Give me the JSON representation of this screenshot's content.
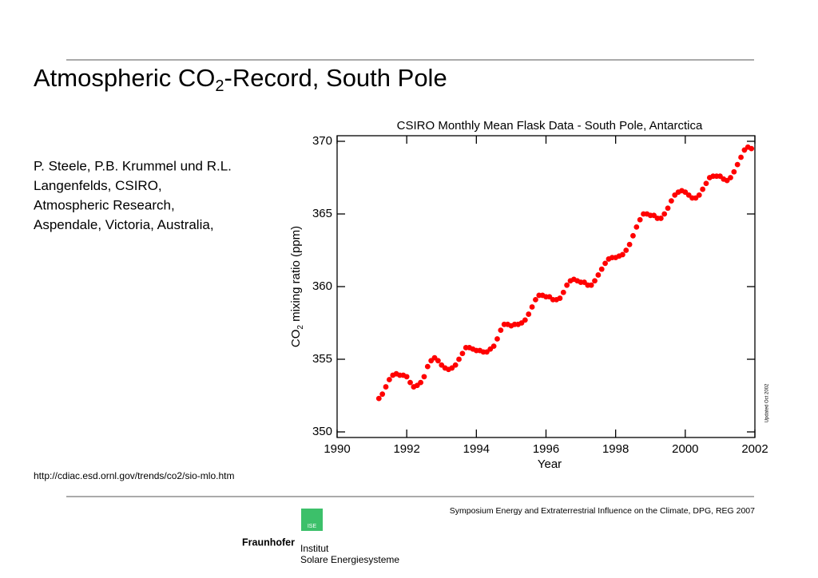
{
  "slide": {
    "title": {
      "main": "Atmospheric CO",
      "sub": "2",
      "rest": "-Record, South Pole"
    },
    "authors": [
      "P. Steele, P.B. Krummel und R.L.",
      "Langenfelds, CSIRO,",
      "Atmospheric Research,",
      "Aspendale, Victoria, Australia,"
    ],
    "url": "http://cdiac.esd.ornl.gov/trends/co2/sio-mlo.htm",
    "footer": "Symposium Energy and Extraterrestrial Influence on the Climate, DPG, REG 2007",
    "logo": {
      "badge": "ISE",
      "name": "Fraunhofer",
      "line1": "Institut",
      "line2": "Solare Energiesysteme"
    }
  },
  "chart_data": {
    "type": "scatter",
    "title": "CSIRO Monthly Mean Flask Data - South Pole, Antarctica",
    "xlabel": "Year",
    "ylabel": {
      "main": "CO",
      "sub": "2",
      "rest": " mixing ratio (ppm)"
    },
    "note": "Updated Oct 2002",
    "color": "#ff0000",
    "xlim": [
      1990,
      2002
    ],
    "xticks": [
      1990,
      1992,
      1994,
      1996,
      1998,
      2000,
      2002
    ],
    "ylim": [
      350,
      370
    ],
    "yticks": [
      350,
      355,
      360,
      365,
      370
    ],
    "x": [
      1991.2,
      1991.3,
      1991.4,
      1991.5,
      1991.6,
      1991.7,
      1991.8,
      1991.9,
      1992.0,
      1992.1,
      1992.2,
      1992.3,
      1992.4,
      1992.5,
      1992.6,
      1992.7,
      1992.8,
      1992.9,
      1993.0,
      1993.1,
      1993.2,
      1993.3,
      1993.4,
      1993.5,
      1993.6,
      1993.7,
      1993.8,
      1993.9,
      1994.0,
      1994.1,
      1994.2,
      1994.3,
      1994.4,
      1994.5,
      1994.6,
      1994.7,
      1994.8,
      1994.9,
      1995.0,
      1995.1,
      1995.2,
      1995.3,
      1995.4,
      1995.5,
      1995.6,
      1995.7,
      1995.8,
      1995.9,
      1996.0,
      1996.1,
      1996.2,
      1996.3,
      1996.4,
      1996.5,
      1996.6,
      1996.7,
      1996.8,
      1996.9,
      1997.0,
      1997.1,
      1997.2,
      1997.3,
      1997.4,
      1997.5,
      1997.6,
      1997.7,
      1997.8,
      1997.9,
      1998.0,
      1998.1,
      1998.2,
      1998.3,
      1998.4,
      1998.5,
      1998.6,
      1998.7,
      1998.8,
      1998.9,
      1999.0,
      1999.1,
      1999.2,
      1999.3,
      1999.4,
      1999.5,
      1999.6,
      1999.7,
      1999.8,
      1999.9,
      2000.0,
      2000.1,
      2000.2,
      2000.3,
      2000.4,
      2000.5,
      2000.6,
      2000.7,
      2000.8,
      2000.9,
      2001.0,
      2001.1,
      2001.2,
      2001.3,
      2001.4,
      2001.5,
      2001.6,
      2001.7,
      2001.8,
      2001.9
    ],
    "values": [
      352.3,
      352.6,
      353.1,
      353.6,
      353.9,
      354.0,
      353.9,
      353.9,
      353.8,
      353.4,
      353.1,
      353.2,
      353.4,
      353.8,
      354.5,
      354.9,
      355.1,
      354.9,
      354.6,
      354.4,
      354.3,
      354.4,
      354.6,
      355.0,
      355.4,
      355.8,
      355.8,
      355.7,
      355.6,
      355.6,
      355.5,
      355.5,
      355.7,
      355.9,
      356.4,
      357.0,
      357.4,
      357.4,
      357.3,
      357.4,
      357.4,
      357.5,
      357.7,
      358.1,
      358.6,
      359.1,
      359.4,
      359.4,
      359.3,
      359.3,
      359.1,
      359.1,
      359.2,
      359.6,
      360.1,
      360.4,
      360.5,
      360.4,
      360.3,
      360.3,
      360.1,
      360.1,
      360.4,
      360.8,
      361.2,
      361.6,
      361.9,
      362.0,
      362.0,
      362.1,
      362.2,
      362.5,
      362.9,
      363.5,
      364.1,
      364.6,
      365.0,
      365.0,
      364.9,
      364.9,
      364.7,
      364.7,
      365.0,
      365.4,
      365.9,
      366.3,
      366.5,
      366.6,
      366.5,
      366.3,
      366.1,
      366.1,
      366.3,
      366.7,
      367.1,
      367.5,
      367.6,
      367.6,
      367.6,
      367.4,
      367.3,
      367.5,
      367.9,
      368.4,
      368.9,
      369.4,
      369.6,
      369.5
    ]
  }
}
